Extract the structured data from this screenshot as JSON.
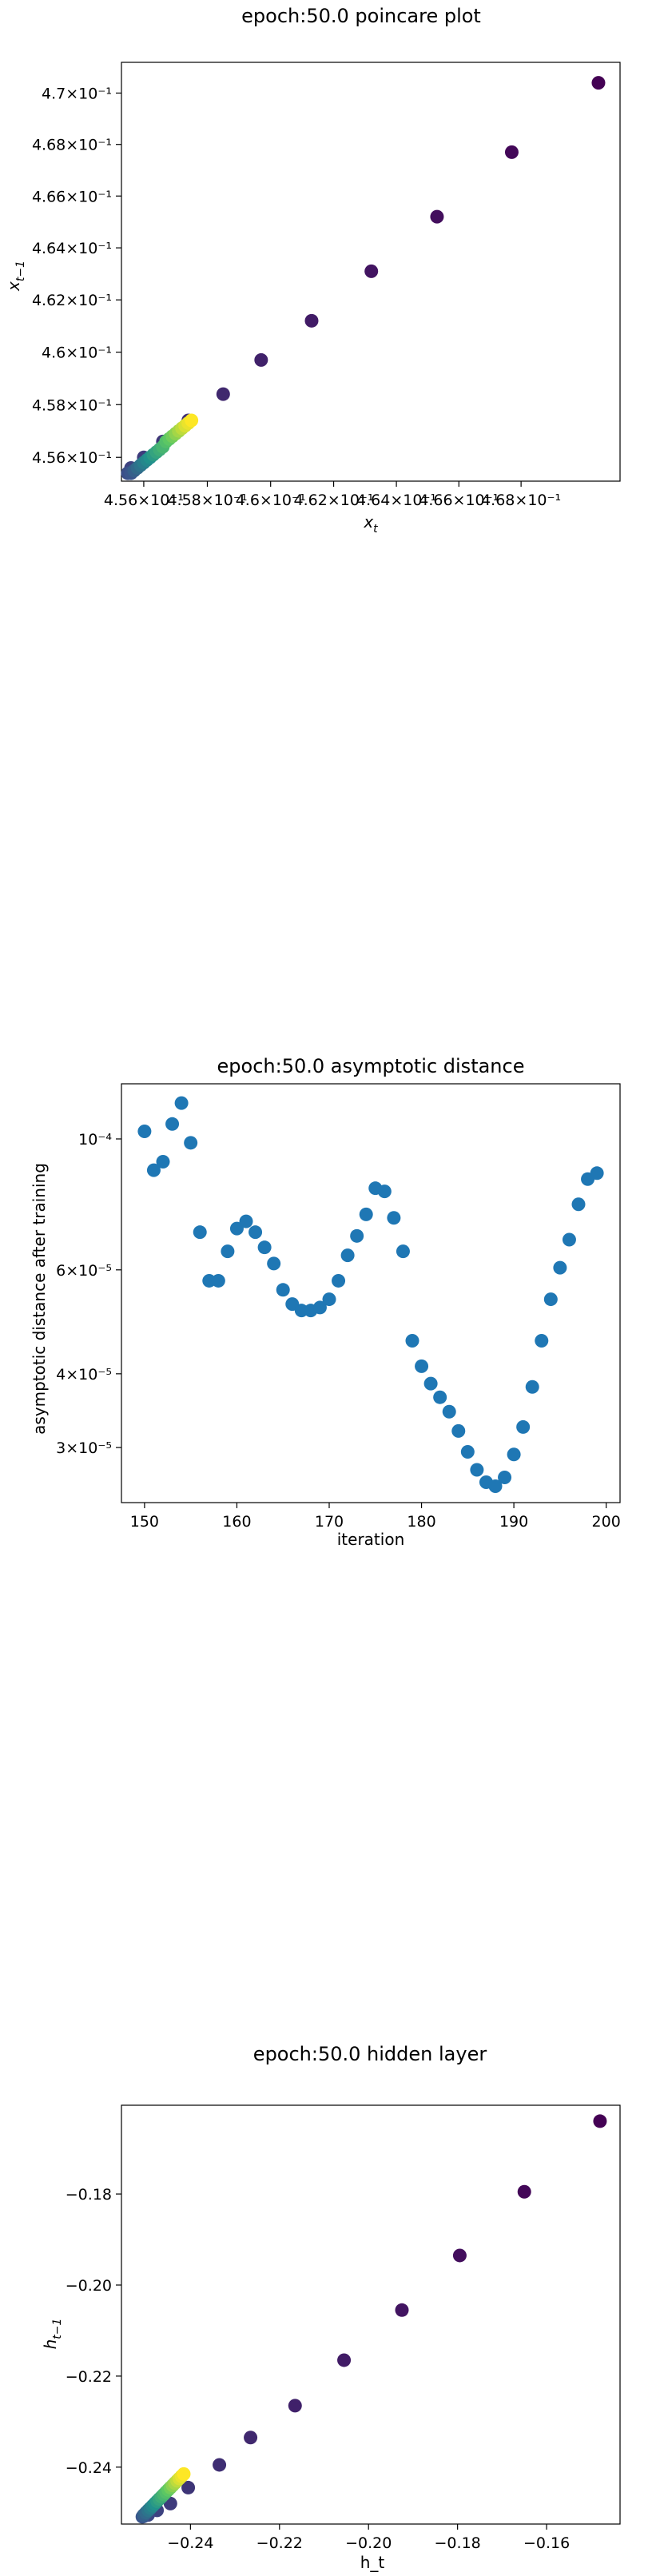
{
  "chart_data": [
    {
      "type": "scatter",
      "title": "epoch:50.0 poincare plot",
      "xlabel": "x_t",
      "ylabel": "x_{t-1}",
      "xscale": "log",
      "yscale": "log",
      "xlim": [
        0.4553,
        0.4712
      ],
      "ylim": [
        0.4551,
        0.4712
      ],
      "xticks": [
        0.456,
        0.458,
        0.46,
        0.462,
        0.464,
        0.466,
        0.468
      ],
      "xtick_labels": [
        "4.56×10⁻¹",
        "4.58×10⁻¹",
        "4.6×10⁻¹",
        "4.62×10⁻¹",
        "4.64×10⁻¹",
        "4.66×10⁻¹",
        "4.68×10⁻¹"
      ],
      "yticks": [
        0.456,
        0.458,
        0.46,
        0.462,
        0.464,
        0.466,
        0.468,
        0.47
      ],
      "ytick_labels": [
        "4.56×10⁻¹",
        "4.58×10⁻¹",
        "4.6×10⁻¹",
        "4.62×10⁻¹",
        "4.64×10⁻¹",
        "4.66×10⁻¹",
        "4.68×10⁻¹",
        "4.7×10⁻¹"
      ],
      "colormap": "viridis",
      "points": [
        {
          "x": 0.4705,
          "y": 0.4704,
          "c": 0.0
        },
        {
          "x": 0.4677,
          "y": 0.4677,
          "c": 0.02
        },
        {
          "x": 0.4653,
          "y": 0.4652,
          "c": 0.04
        },
        {
          "x": 0.4632,
          "y": 0.4631,
          "c": 0.06
        },
        {
          "x": 0.4613,
          "y": 0.4612,
          "c": 0.08
        },
        {
          "x": 0.4597,
          "y": 0.4597,
          "c": 0.1
        },
        {
          "x": 0.4585,
          "y": 0.4584,
          "c": 0.12
        },
        {
          "x": 0.4574,
          "y": 0.4574,
          "c": 0.14
        },
        {
          "x": 0.4566,
          "y": 0.4566,
          "c": 0.16
        },
        {
          "x": 0.456,
          "y": 0.456,
          "c": 0.18
        },
        {
          "x": 0.4556,
          "y": 0.4556,
          "c": 0.2
        },
        {
          "x": 0.4555,
          "y": 0.4554,
          "c": 0.22
        },
        {
          "x": 0.4555,
          "y": 0.4554,
          "c": 0.24
        },
        {
          "x": 0.4556,
          "y": 0.4554,
          "c": 0.26
        },
        {
          "x": 0.4557,
          "y": 0.4555,
          "c": 0.3
        },
        {
          "x": 0.4558,
          "y": 0.4556,
          "c": 0.34
        },
        {
          "x": 0.4559,
          "y": 0.4557,
          "c": 0.38
        },
        {
          "x": 0.456,
          "y": 0.4558,
          "c": 0.42
        },
        {
          "x": 0.4561,
          "y": 0.4559,
          "c": 0.46
        },
        {
          "x": 0.4562,
          "y": 0.456,
          "c": 0.5
        },
        {
          "x": 0.4563,
          "y": 0.4561,
          "c": 0.54
        },
        {
          "x": 0.4564,
          "y": 0.4562,
          "c": 0.58
        },
        {
          "x": 0.4565,
          "y": 0.4563,
          "c": 0.62
        },
        {
          "x": 0.4566,
          "y": 0.4564,
          "c": 0.66
        },
        {
          "x": 0.4567,
          "y": 0.4566,
          "c": 0.7
        },
        {
          "x": 0.4568,
          "y": 0.4567,
          "c": 0.74
        },
        {
          "x": 0.4569,
          "y": 0.4568,
          "c": 0.78
        },
        {
          "x": 0.457,
          "y": 0.4569,
          "c": 0.82
        },
        {
          "x": 0.4571,
          "y": 0.457,
          "c": 0.86
        },
        {
          "x": 0.4572,
          "y": 0.4571,
          "c": 0.9
        },
        {
          "x": 0.4573,
          "y": 0.4572,
          "c": 0.94
        },
        {
          "x": 0.4574,
          "y": 0.4573,
          "c": 0.97
        },
        {
          "x": 0.4575,
          "y": 0.4574,
          "c": 1.0
        }
      ]
    },
    {
      "type": "scatter",
      "title": "epoch:50.0 asymptotic distance",
      "xlabel": "iteration",
      "ylabel": "asymptotic distance after training",
      "yscale": "log",
      "xlim": [
        147.5,
        201.5
      ],
      "ylim": [
        2.42e-05,
        0.000124
      ],
      "xticks": [
        150,
        160,
        170,
        180,
        190,
        200
      ],
      "yticks": [
        3e-05,
        4e-05,
        6e-05,
        0.0001
      ],
      "ytick_labels": [
        "3×10⁻⁵",
        "4×10⁻⁵",
        "6×10⁻⁵",
        "10⁻⁴"
      ],
      "color": "#1f77b4",
      "x": [
        150,
        151,
        152,
        153,
        154,
        155,
        156,
        157,
        158,
        159,
        160,
        161,
        162,
        163,
        164,
        165,
        166,
        167,
        168,
        169,
        170,
        171,
        172,
        173,
        174,
        175,
        176,
        177,
        178,
        179,
        180,
        181,
        182,
        183,
        184,
        185,
        186,
        187,
        188,
        189,
        190,
        191,
        192,
        193,
        194,
        195,
        196,
        197,
        198,
        199
      ],
      "y": [
        0.000103,
        8.85e-05,
        9.15e-05,
        0.000106,
        0.000115,
        9.85e-05,
        6.95e-05,
        5.75e-05,
        5.75e-05,
        6.45e-05,
        7.05e-05,
        7.25e-05,
        6.95e-05,
        6.55e-05,
        6.15e-05,
        5.55e-05,
        5.25e-05,
        5.12e-05,
        5.12e-05,
        5.18e-05,
        5.35e-05,
        5.75e-05,
        6.35e-05,
        6.85e-05,
        7.45e-05,
        8.25e-05,
        8.15e-05,
        7.35e-05,
        6.45e-05,
        4.55e-05,
        4.12e-05,
        3.85e-05,
        3.65e-05,
        3.45e-05,
        3.2e-05,
        2.95e-05,
        2.75e-05,
        2.62e-05,
        2.58e-05,
        2.67e-05,
        2.92e-05,
        3.25e-05,
        3.8e-05,
        4.55e-05,
        5.35e-05,
        6.05e-05,
        6.75e-05,
        7.75e-05,
        8.55e-05,
        8.75e-05
      ]
    },
    {
      "type": "scatter",
      "title": "epoch:50.0 hidden layer",
      "xlabel": "h_t",
      "ylabel": "h_{t-1}",
      "xlim": [
        -0.2555,
        -0.1435
      ],
      "ylim": [
        -0.2525,
        -0.1605
      ],
      "xticks": [
        -0.24,
        -0.22,
        -0.2,
        -0.18,
        -0.16
      ],
      "xtick_labels": [
        "−0.24",
        "−0.22",
        "−0.20",
        "−0.18",
        "−0.16"
      ],
      "yticks": [
        -0.24,
        -0.22,
        -0.2,
        -0.18
      ],
      "ytick_labels": [
        "−0.24",
        "−0.22",
        "−0.20",
        "−0.18"
      ],
      "colormap": "viridis",
      "points": [
        {
          "x": -0.148,
          "y": -0.164,
          "c": 0.0
        },
        {
          "x": -0.165,
          "y": -0.1795,
          "c": 0.02
        },
        {
          "x": -0.1795,
          "y": -0.1935,
          "c": 0.04
        },
        {
          "x": -0.1925,
          "y": -0.2055,
          "c": 0.06
        },
        {
          "x": -0.2055,
          "y": -0.2165,
          "c": 0.08
        },
        {
          "x": -0.2165,
          "y": -0.2265,
          "c": 0.1
        },
        {
          "x": -0.2265,
          "y": -0.2335,
          "c": 0.12
        },
        {
          "x": -0.2335,
          "y": -0.2395,
          "c": 0.14
        },
        {
          "x": -0.2405,
          "y": -0.2445,
          "c": 0.16
        },
        {
          "x": -0.2445,
          "y": -0.248,
          "c": 0.18
        },
        {
          "x": -0.2475,
          "y": -0.2495,
          "c": 0.2
        },
        {
          "x": -0.2495,
          "y": -0.2505,
          "c": 0.22
        },
        {
          "x": -0.2505,
          "y": -0.2508,
          "c": 0.24
        },
        {
          "x": -0.2508,
          "y": -0.2509,
          "c": 0.26
        },
        {
          "x": -0.2505,
          "y": -0.2505,
          "c": 0.3
        },
        {
          "x": -0.25,
          "y": -0.25,
          "c": 0.34
        },
        {
          "x": -0.2495,
          "y": -0.2495,
          "c": 0.38
        },
        {
          "x": -0.249,
          "y": -0.249,
          "c": 0.42
        },
        {
          "x": -0.2485,
          "y": -0.2485,
          "c": 0.46
        },
        {
          "x": -0.248,
          "y": -0.248,
          "c": 0.5
        },
        {
          "x": -0.2475,
          "y": -0.2475,
          "c": 0.54
        },
        {
          "x": -0.247,
          "y": -0.247,
          "c": 0.58
        },
        {
          "x": -0.2465,
          "y": -0.2465,
          "c": 0.62
        },
        {
          "x": -0.246,
          "y": -0.246,
          "c": 0.66
        },
        {
          "x": -0.2455,
          "y": -0.2455,
          "c": 0.7
        },
        {
          "x": -0.245,
          "y": -0.245,
          "c": 0.74
        },
        {
          "x": -0.2445,
          "y": -0.2445,
          "c": 0.78
        },
        {
          "x": -0.244,
          "y": -0.244,
          "c": 0.82
        },
        {
          "x": -0.2435,
          "y": -0.2435,
          "c": 0.86
        },
        {
          "x": -0.243,
          "y": -0.243,
          "c": 0.9
        },
        {
          "x": -0.2425,
          "y": -0.2425,
          "c": 0.94
        },
        {
          "x": -0.242,
          "y": -0.242,
          "c": 0.97
        },
        {
          "x": -0.2415,
          "y": -0.2415,
          "c": 1.0
        }
      ]
    }
  ]
}
